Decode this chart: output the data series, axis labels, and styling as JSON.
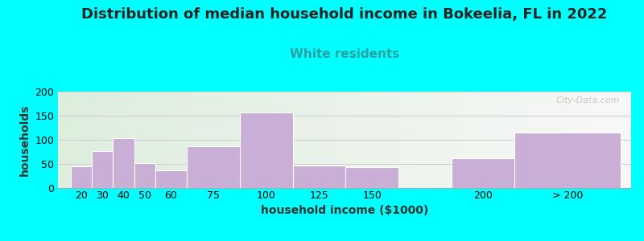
{
  "title": "Distribution of median household income in Bokeelia, FL in 2022",
  "subtitle": "White residents",
  "xlabel": "household income ($1000)",
  "ylabel": "households",
  "background_color": "#00FFFF",
  "plot_bg_left_color": "#ddeedd",
  "plot_bg_right_color": "#f8f8f8",
  "bar_color": "#c9aed6",
  "categories": [
    "20",
    "30",
    "40",
    "50",
    "60",
    "75",
    "100",
    "125",
    "150",
    "200",
    "> 200"
  ],
  "bar_lefts": [
    20,
    30,
    40,
    50,
    60,
    75,
    100,
    125,
    150,
    200,
    230
  ],
  "bar_widths": [
    10,
    10,
    10,
    10,
    15,
    25,
    25,
    25,
    25,
    30,
    50
  ],
  "values": [
    45,
    77,
    104,
    52,
    36,
    86,
    157,
    46,
    44,
    61,
    115
  ],
  "ylim": [
    0,
    200
  ],
  "yticks": [
    0,
    50,
    100,
    150,
    200
  ],
  "title_fontsize": 13,
  "subtitle_fontsize": 11,
  "subtitle_color": "#2aa0a4",
  "axis_label_fontsize": 10,
  "tick_fontsize": 9,
  "watermark": "City-Data.com",
  "grid_color": "#cccccc",
  "xmin": 14,
  "xmax": 285
}
